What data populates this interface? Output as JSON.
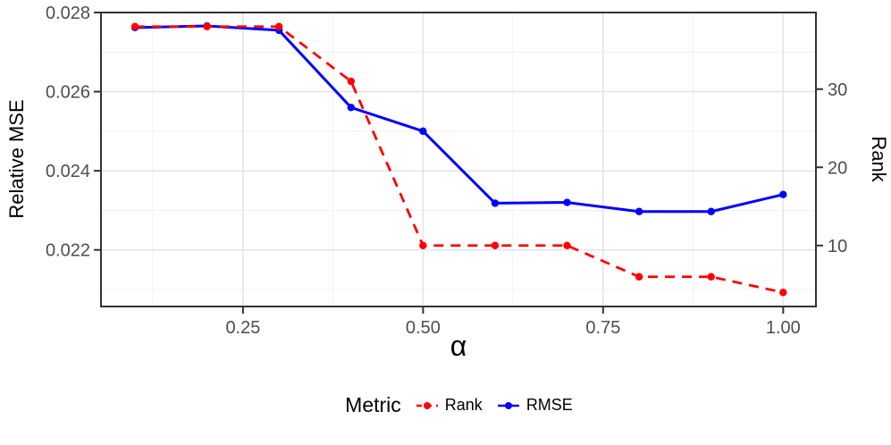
{
  "chart_data": {
    "type": "line",
    "title": "",
    "xlabel": "α",
    "ylabel_left": "Relative MSE",
    "ylabel_right": "Rank",
    "x": [
      0.1,
      0.2,
      0.3,
      0.4,
      0.5,
      0.6,
      0.7,
      0.8,
      0.9,
      1.0
    ],
    "series": [
      {
        "name": "Rank",
        "axis": "right",
        "color": "#FF0000",
        "linetype": "dashed",
        "dash": "11 8",
        "width": 2.8,
        "z": 2,
        "values": [
          38,
          38,
          38,
          31,
          10,
          10,
          10,
          6,
          6,
          4
        ]
      },
      {
        "name": "RMSE",
        "axis": "left",
        "color": "#0000FF",
        "linetype": "solid",
        "dash": "",
        "width": 3,
        "z": 1,
        "values": [
          0.02762,
          0.02766,
          0.02755,
          0.0256,
          0.025,
          0.02318,
          0.0232,
          0.02297,
          0.02297,
          0.0234
        ]
      }
    ],
    "axes": {
      "x": {
        "range": [
          0.0528,
          1.0455
        ],
        "ticks": [
          {
            "value": 0.25,
            "label": "0.25"
          },
          {
            "value": 0.5,
            "label": "0.50"
          },
          {
            "value": 0.75,
            "label": "0.75"
          },
          {
            "value": 1.0,
            "label": "1.00"
          }
        ],
        "minor": [
          0.125,
          0.375,
          0.625,
          0.875
        ]
      },
      "y_left": {
        "range": [
          0.02057,
          0.028
        ],
        "ticks": [
          {
            "value": 0.028,
            "label": "0.028"
          },
          {
            "value": 0.026,
            "label": "0.026"
          },
          {
            "value": 0.024,
            "label": "0.024"
          },
          {
            "value": 0.022,
            "label": "0.022"
          }
        ],
        "minor": [
          0.027,
          0.025,
          0.023,
          0.021
        ]
      },
      "y_right": {
        "range": [
          2.2,
          39.8
        ],
        "ticks": [
          {
            "value": 30,
            "label": "30"
          },
          {
            "value": 20,
            "label": "20"
          },
          {
            "value": 10,
            "label": "10"
          }
        ],
        "minor": []
      }
    },
    "grid": true,
    "legend": {
      "title": "Metric",
      "position": "bottom",
      "entries": [
        "Rank",
        "RMSE"
      ]
    },
    "style": {
      "grid_major": "#E3E3E3",
      "grid_minor": "#F1F1F1",
      "border": "#333333",
      "tick_label": "#4D4D4D",
      "background": "#FFFFFF"
    }
  }
}
